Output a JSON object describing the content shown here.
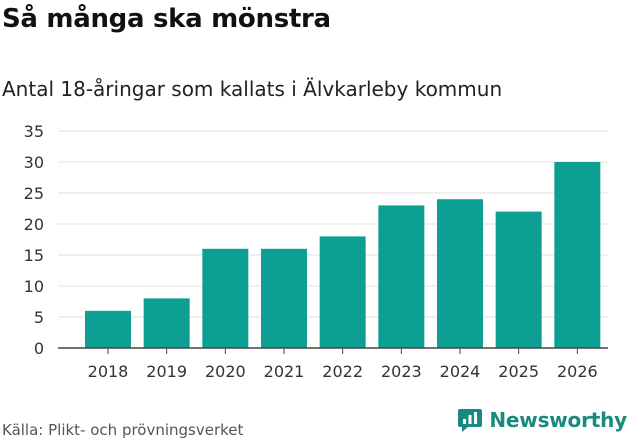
{
  "header": {
    "title": "Så många ska mönstra",
    "subtitle": "Antal 18-åringar som kallats i Älvkarleby kommun"
  },
  "footer": {
    "source": "Källa: Plikt- och prövningsverket",
    "brand": "Newsworthy"
  },
  "colors": {
    "bar": "#0ca095",
    "grid": "#e2e2e2",
    "axis": "#444444",
    "brand": "#1a8a80"
  },
  "chart_data": {
    "type": "bar",
    "categories": [
      "2018",
      "2019",
      "2020",
      "2021",
      "2022",
      "2023",
      "2024",
      "2025",
      "2026"
    ],
    "values": [
      6,
      8,
      16,
      16,
      18,
      23,
      24,
      22,
      30
    ],
    "ylim": [
      0,
      35
    ],
    "yticks": [
      0,
      5,
      10,
      15,
      20,
      25,
      30,
      35
    ],
    "grid": true,
    "legend": "none"
  }
}
